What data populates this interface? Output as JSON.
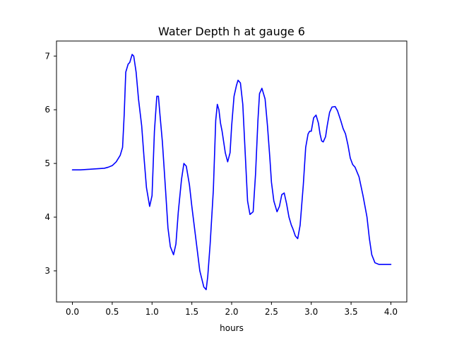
{
  "chart_data": {
    "type": "line",
    "title": "Water Depth h at gauge 6",
    "xlabel": "hours",
    "ylabel": "",
    "xlim": [
      -0.2,
      4.2
    ],
    "ylim": [
      2.42,
      7.28
    ],
    "xticks": [
      0.0,
      0.5,
      1.0,
      1.5,
      2.0,
      2.5,
      3.0,
      3.5,
      4.0
    ],
    "xtick_labels": [
      "0.0",
      "0.5",
      "1.0",
      "1.5",
      "2.0",
      "2.5",
      "3.0",
      "3.5",
      "4.0"
    ],
    "yticks": [
      3,
      4,
      5,
      6,
      7
    ],
    "ytick_labels": [
      "3",
      "4",
      "5",
      "6",
      "7"
    ],
    "grid": false,
    "series": [
      {
        "color": "#0000ff",
        "x": [
          0.0,
          0.1,
          0.2,
          0.3,
          0.4,
          0.45,
          0.5,
          0.55,
          0.6,
          0.63,
          0.65,
          0.67,
          0.7,
          0.72,
          0.75,
          0.77,
          0.8,
          0.83,
          0.87,
          0.9,
          0.93,
          0.97,
          1.0,
          1.03,
          1.06,
          1.08,
          1.1,
          1.13,
          1.17,
          1.2,
          1.23,
          1.27,
          1.3,
          1.33,
          1.37,
          1.4,
          1.43,
          1.47,
          1.5,
          1.55,
          1.6,
          1.65,
          1.68,
          1.7,
          1.73,
          1.77,
          1.8,
          1.82,
          1.84,
          1.86,
          1.88,
          1.9,
          1.92,
          1.95,
          1.98,
          2.0,
          2.03,
          2.06,
          2.08,
          2.11,
          2.14,
          2.16,
          2.18,
          2.2,
          2.23,
          2.27,
          2.3,
          2.33,
          2.35,
          2.38,
          2.42,
          2.45,
          2.48,
          2.5,
          2.53,
          2.57,
          2.6,
          2.63,
          2.66,
          2.69,
          2.72,
          2.75,
          2.77,
          2.8,
          2.83,
          2.86,
          2.9,
          2.93,
          2.96,
          2.98,
          3.0,
          3.03,
          3.06,
          3.09,
          3.11,
          3.13,
          3.15,
          3.18,
          3.2,
          3.23,
          3.26,
          3.3,
          3.33,
          3.37,
          3.4,
          3.43,
          3.46,
          3.49,
          3.52,
          3.55,
          3.6,
          3.65,
          3.7,
          3.73,
          3.76,
          3.8,
          3.85,
          3.9,
          3.93,
          3.96,
          3.98,
          4.0
        ],
        "y": [
          4.88,
          4.88,
          4.89,
          4.9,
          4.91,
          4.93,
          4.96,
          5.03,
          5.15,
          5.3,
          5.9,
          6.7,
          6.85,
          6.88,
          7.03,
          7.0,
          6.7,
          6.2,
          5.7,
          5.1,
          4.55,
          4.2,
          4.4,
          5.6,
          6.25,
          6.25,
          5.9,
          5.4,
          4.5,
          3.8,
          3.45,
          3.3,
          3.5,
          4.1,
          4.7,
          5.0,
          4.95,
          4.6,
          4.2,
          3.6,
          3.0,
          2.7,
          2.65,
          2.9,
          3.5,
          4.5,
          5.8,
          6.1,
          6.0,
          5.75,
          5.6,
          5.4,
          5.2,
          5.03,
          5.2,
          5.7,
          6.25,
          6.45,
          6.55,
          6.5,
          6.1,
          5.5,
          4.9,
          4.3,
          4.05,
          4.1,
          4.8,
          5.8,
          6.3,
          6.4,
          6.2,
          5.7,
          5.1,
          4.65,
          4.3,
          4.1,
          4.2,
          4.42,
          4.45,
          4.25,
          4.0,
          3.85,
          3.78,
          3.65,
          3.6,
          3.85,
          4.6,
          5.3,
          5.55,
          5.6,
          5.6,
          5.85,
          5.9,
          5.75,
          5.55,
          5.42,
          5.4,
          5.5,
          5.7,
          5.95,
          6.05,
          6.06,
          5.98,
          5.8,
          5.65,
          5.55,
          5.35,
          5.1,
          4.98,
          4.93,
          4.75,
          4.4,
          4.0,
          3.6,
          3.3,
          3.15,
          3.12,
          3.12,
          3.12,
          3.12,
          3.12,
          3.12
        ]
      }
    ]
  }
}
